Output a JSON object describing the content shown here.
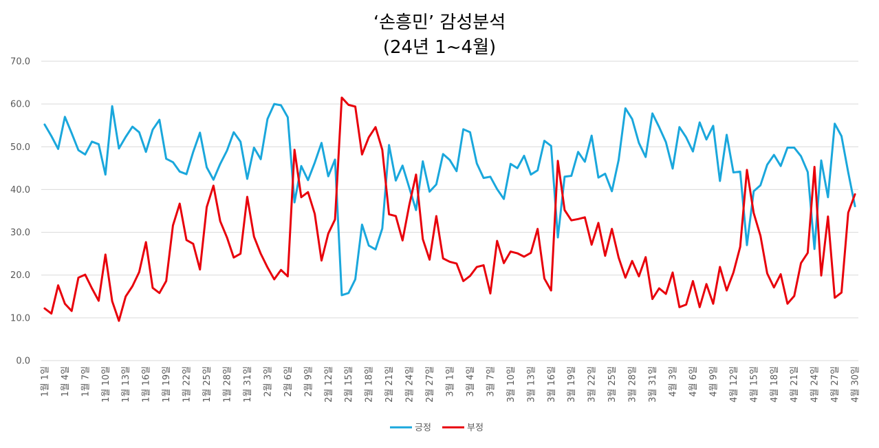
{
  "chart_data": {
    "type": "line",
    "title": "‘손흥민’ 감성분석",
    "subtitle": "(24년 1~4월)",
    "xlabel": "",
    "ylabel": "",
    "ylim": [
      0,
      70
    ],
    "yticks": [
      "0.0",
      "10.0",
      "20.0",
      "30.0",
      "40.0",
      "50.0",
      "60.0",
      "70.0"
    ],
    "grid": true,
    "legend_position": "bottom",
    "x_tick_labels": [
      "1월 1일",
      "1월 4일",
      "1월 7일",
      "1월 10일",
      "1월 13일",
      "1월 16일",
      "1월 19일",
      "1월 22일",
      "1월 25일",
      "1월 28일",
      "1월 31일",
      "2월 3일",
      "2월 6일",
      "2월 9일",
      "2월 12일",
      "2월 15일",
      "2월 18일",
      "2월 21일",
      "2월 24일",
      "2월 27일",
      "3월 1일",
      "3월 4일",
      "3월 7일",
      "3월 10일",
      "3월 13일",
      "3월 16일",
      "3월 19일",
      "3월 22일",
      "3월 25일",
      "3월 28일",
      "3월 31일",
      "4월 3일",
      "4월 6일",
      "4월 9일",
      "4월 12일",
      "4월 15일",
      "4월 18일",
      "4월 21일",
      "4월 24일",
      "4월 27일",
      "4월 30일"
    ],
    "x_start": "1월 1일",
    "x_end": "4월 30일",
    "x_step_days": 1,
    "series": [
      {
        "name": "긍정",
        "color": "#1AA7DC",
        "values": [
          55.2,
          52.5,
          49.5,
          57.0,
          53.2,
          49.2,
          48.2,
          51.2,
          50.6,
          43.5,
          59.5,
          49.6,
          52.3,
          54.7,
          53.4,
          48.8,
          54.0,
          56.3,
          47.2,
          46.4,
          44.2,
          43.6,
          48.8,
          53.3,
          45.2,
          42.3,
          46.0,
          49.1,
          53.4,
          51.2,
          42.5,
          49.8,
          47.1,
          56.5,
          60.0,
          59.7,
          56.9,
          37.0,
          45.5,
          42.2,
          46.3,
          50.9,
          43.1,
          47.0,
          15.3,
          15.8,
          19.0,
          31.8,
          26.9,
          26.0,
          30.9,
          50.4,
          42.1,
          45.6,
          40.4,
          35.2,
          46.6,
          39.5,
          41.2,
          48.3,
          46.9,
          44.3,
          54.1,
          53.4,
          46.1,
          42.7,
          43.0,
          40.1,
          37.8,
          46.0,
          45.0,
          47.9,
          43.5,
          44.5,
          51.4,
          50.2,
          28.8,
          43.0,
          43.2,
          48.8,
          46.5,
          52.6,
          42.8,
          43.7,
          39.6,
          46.9,
          59.0,
          56.5,
          50.9,
          47.6,
          57.8,
          54.6,
          51.1,
          44.9,
          54.6,
          52.2,
          48.9,
          55.7,
          51.7,
          54.9,
          42.0,
          52.8,
          44.0,
          44.2,
          27.0,
          39.6,
          41.0,
          45.8,
          48.1,
          45.5,
          49.8,
          49.8,
          47.8,
          44.1,
          26.1,
          46.8,
          38.2,
          55.4,
          52.5,
          44.0,
          36.1
        ]
      },
      {
        "name": "부정",
        "color": "#E8000B",
        "values": [
          12.2,
          11.0,
          17.6,
          13.3,
          11.6,
          19.4,
          20.1,
          16.9,
          14.0,
          24.8,
          13.9,
          9.3,
          15.0,
          17.4,
          20.7,
          27.7,
          17.0,
          15.8,
          18.6,
          31.6,
          36.7,
          28.2,
          27.3,
          21.3,
          35.9,
          40.9,
          32.6,
          28.8,
          24.1,
          25.0,
          38.3,
          29.0,
          25.0,
          21.8,
          19.0,
          21.2,
          19.7,
          49.3,
          38.2,
          39.4,
          34.3,
          23.4,
          29.7,
          33.0,
          61.5,
          59.8,
          59.4,
          48.2,
          52.2,
          54.6,
          49.3,
          34.2,
          33.8,
          28.1,
          36.4,
          43.5,
          28.4,
          23.6,
          33.8,
          23.9,
          23.1,
          22.7,
          18.6,
          19.8,
          21.9,
          22.3,
          15.7,
          28.0,
          22.8,
          25.5,
          25.1,
          24.3,
          25.2,
          30.8,
          19.2,
          16.4,
          46.7,
          35.2,
          32.8,
          33.1,
          33.5,
          27.1,
          32.2,
          24.5,
          30.8,
          24.1,
          19.4,
          23.3,
          19.7,
          24.2,
          14.4,
          16.9,
          15.6,
          20.6,
          12.5,
          13.1,
          18.6,
          12.5,
          17.9,
          13.3,
          21.9,
          16.4,
          20.6,
          26.6,
          44.6,
          34.5,
          29.2,
          20.4,
          17.1,
          20.2,
          13.3,
          15.1,
          22.8,
          25.2,
          45.3,
          19.9,
          33.7,
          14.7,
          15.9,
          34.6,
          38.9
        ]
      }
    ]
  }
}
